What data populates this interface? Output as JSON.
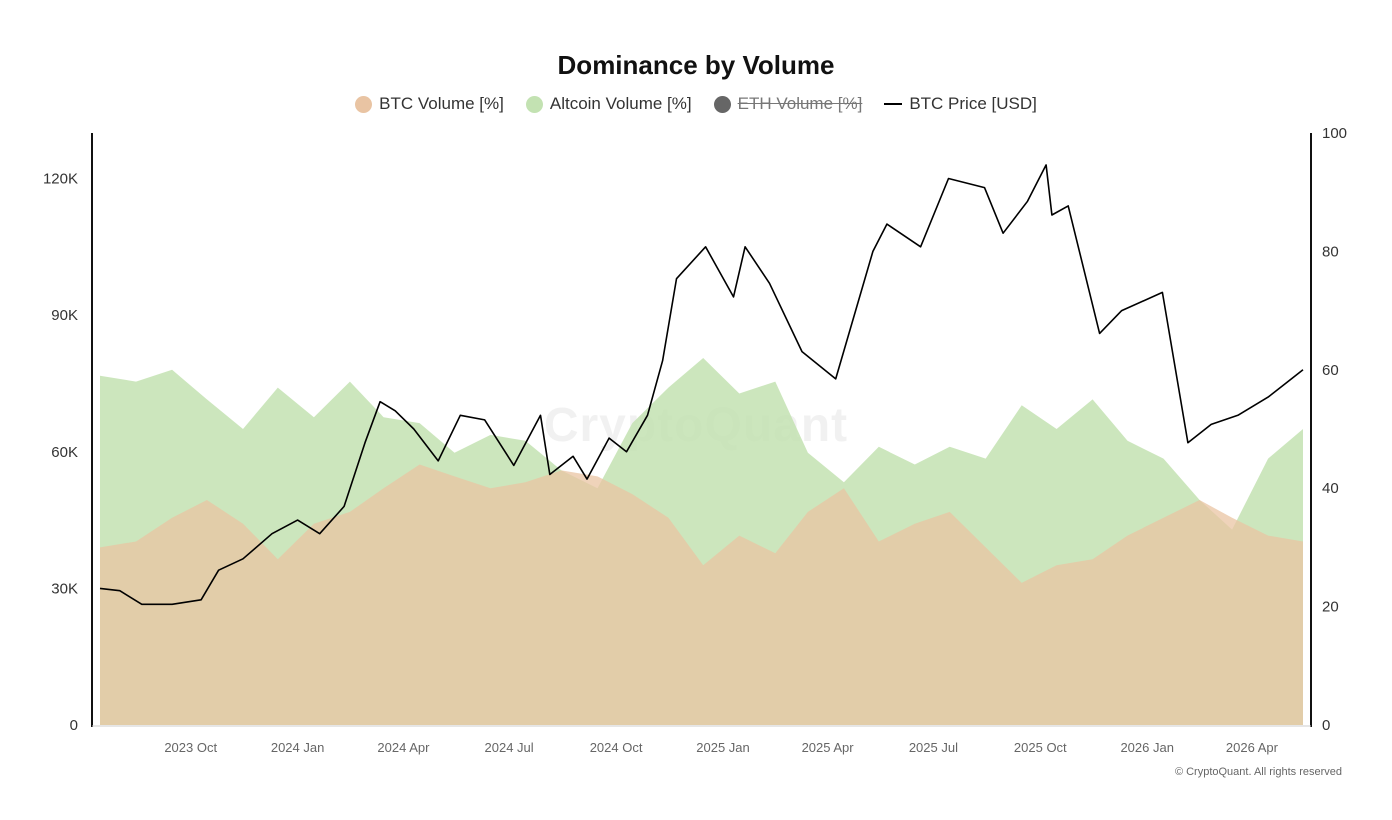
{
  "chart_data": {
    "type": "area",
    "title": "Dominance by Volume",
    "legend": [
      {
        "name": "BTC Volume [%]",
        "color": "#e9c4a3",
        "marker": "dot",
        "hidden": false
      },
      {
        "name": "Altcoin Volume [%]",
        "color": "#c3e2b2",
        "marker": "dot",
        "hidden": false
      },
      {
        "name": "ETH Volume [%]",
        "color": "#666666",
        "marker": "dot",
        "hidden": true
      },
      {
        "name": "BTC Price [USD]",
        "color": "#000000",
        "marker": "line",
        "hidden": false
      }
    ],
    "legend_position": "top-center",
    "x_range": [
      "2023-07-15",
      "2026-05-15"
    ],
    "x_ticks": [
      "2023 Oct",
      "2024 Jan",
      "2024 Apr",
      "2024 Jul",
      "2024 Oct",
      "2025 Jan",
      "2025 Apr",
      "2025 Jul",
      "2025 Oct",
      "2026 Jan",
      "2026 Apr"
    ],
    "y_left": {
      "range": [
        0,
        130000
      ],
      "ticks": [
        "0",
        "30K",
        "60K",
        "90K",
        "120K"
      ],
      "tick_values": [
        0,
        30000,
        60000,
        90000,
        120000
      ]
    },
    "y_right": {
      "range": [
        0,
        100
      ],
      "ticks": [
        "0",
        "20",
        "40",
        "60",
        "80",
        "100"
      ],
      "tick_values": [
        0,
        20,
        40,
        60,
        80,
        100
      ]
    },
    "grid": false,
    "series": [
      {
        "name": "BTC Volume [%]",
        "axis": "right",
        "x": [
          "2023-07-15",
          "2023-08-15",
          "2023-09-15",
          "2023-10-15",
          "2023-11-15",
          "2023-12-15",
          "2024-01-15",
          "2024-02-15",
          "2024-03-15",
          "2024-04-15",
          "2024-05-15",
          "2024-06-15",
          "2024-07-15",
          "2024-08-15",
          "2024-09-15",
          "2024-10-15",
          "2024-11-15",
          "2024-12-15",
          "2025-01-15",
          "2025-02-15",
          "2025-03-15",
          "2025-04-15",
          "2025-05-15",
          "2025-06-15",
          "2025-07-15",
          "2025-08-15",
          "2025-09-15",
          "2025-10-15",
          "2025-11-15",
          "2025-12-15",
          "2026-01-15",
          "2026-02-15",
          "2026-03-15",
          "2026-04-15",
          "2026-05-15"
        ],
        "values": [
          30,
          31,
          35,
          38,
          34,
          28,
          34,
          36,
          40,
          44,
          42,
          40,
          41,
          43,
          42,
          39,
          35,
          27,
          32,
          29,
          36,
          40,
          31,
          34,
          36,
          30,
          24,
          27,
          28,
          32,
          35,
          38,
          35,
          32,
          31
        ]
      },
      {
        "name": "Altcoin Volume [%]",
        "axis": "right",
        "x": [
          "2023-07-15",
          "2023-08-15",
          "2023-09-15",
          "2023-10-15",
          "2023-11-15",
          "2023-12-15",
          "2024-01-15",
          "2024-02-15",
          "2024-03-15",
          "2024-04-15",
          "2024-05-15",
          "2024-06-15",
          "2024-07-15",
          "2024-08-15",
          "2024-09-15",
          "2024-10-15",
          "2024-11-15",
          "2024-12-15",
          "2025-01-15",
          "2025-02-15",
          "2025-03-15",
          "2025-04-15",
          "2025-05-15",
          "2025-06-15",
          "2025-07-15",
          "2025-08-15",
          "2025-09-15",
          "2025-10-15",
          "2025-11-15",
          "2025-12-15",
          "2026-01-15",
          "2026-02-15",
          "2026-03-15",
          "2026-04-15",
          "2026-05-15"
        ],
        "values": [
          59,
          58,
          60,
          55,
          50,
          57,
          52,
          58,
          52,
          51,
          46,
          49,
          48,
          43,
          40,
          51,
          57,
          62,
          56,
          58,
          46,
          41,
          47,
          44,
          47,
          45,
          54,
          50,
          55,
          48,
          45,
          38,
          33,
          45,
          50
        ]
      },
      {
        "name": "BTC Price [USD]",
        "axis": "left",
        "x": [
          "2023-07-15",
          "2023-08-01",
          "2023-08-20",
          "2023-09-15",
          "2023-10-10",
          "2023-10-25",
          "2023-11-15",
          "2023-12-10",
          "2024-01-01",
          "2024-01-20",
          "2024-02-10",
          "2024-02-28",
          "2024-03-12",
          "2024-03-25",
          "2024-04-10",
          "2024-05-01",
          "2024-05-20",
          "2024-06-10",
          "2024-07-05",
          "2024-07-28",
          "2024-08-05",
          "2024-08-25",
          "2024-09-06",
          "2024-09-25",
          "2024-10-10",
          "2024-10-28",
          "2024-11-10",
          "2024-11-22",
          "2024-12-17",
          "2025-01-10",
          "2025-01-20",
          "2025-02-10",
          "2025-03-10",
          "2025-04-08",
          "2025-05-10",
          "2025-05-22",
          "2025-06-20",
          "2025-07-14",
          "2025-08-14",
          "2025-08-30",
          "2025-09-20",
          "2025-10-06",
          "2025-10-11",
          "2025-10-25",
          "2025-11-21",
          "2025-12-10",
          "2026-01-14",
          "2026-02-05",
          "2026-02-25",
          "2026-03-20",
          "2026-04-15",
          "2026-05-15"
        ],
        "values": [
          30000,
          29500,
          26500,
          26500,
          27500,
          34000,
          36500,
          42000,
          45000,
          42000,
          48000,
          62000,
          71000,
          69000,
          65000,
          58000,
          68000,
          67000,
          57000,
          68000,
          55000,
          59000,
          54000,
          63000,
          60000,
          68000,
          80000,
          98000,
          105000,
          94000,
          105000,
          97000,
          82000,
          76000,
          104000,
          110000,
          105000,
          120000,
          118000,
          108000,
          115000,
          123000,
          112000,
          114000,
          86000,
          91000,
          95000,
          62000,
          66000,
          68000,
          72000,
          78000
        ]
      }
    ]
  },
  "watermark": "CryptoQuant",
  "copyright": "© CryptoQuant. All rights reserved"
}
